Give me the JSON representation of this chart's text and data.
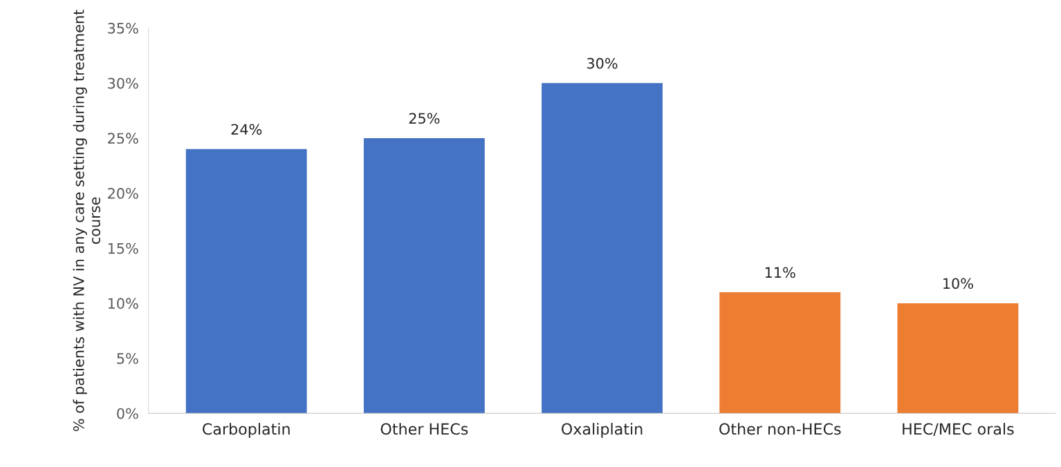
{
  "chart_data": {
    "type": "bar",
    "ylabel": "% of patients with NV in any care setting during treatment course",
    "categories": [
      "Carboplatin",
      "Other HECs",
      "Oxaliplatin",
      "Other non-HECs",
      "HEC/MEC orals"
    ],
    "values": [
      24,
      25,
      30,
      11,
      10
    ],
    "colors": [
      "#4472c4",
      "#4472c4",
      "#4472c4",
      "#ed7d31",
      "#ed7d31"
    ],
    "value_labels": [
      "24%",
      "25%",
      "30%",
      "11%",
      "10%"
    ],
    "ylim": [
      0,
      35
    ],
    "yticks": [
      {
        "value": 0,
        "label": "0%"
      },
      {
        "value": 5,
        "label": "5%"
      },
      {
        "value": 10,
        "label": "10%"
      },
      {
        "value": 15,
        "label": "15%"
      },
      {
        "value": 20,
        "label": "20%"
      },
      {
        "value": 25,
        "label": "25%"
      },
      {
        "value": 30,
        "label": "30%"
      },
      {
        "value": 35,
        "label": "35%"
      }
    ],
    "grid": false
  }
}
